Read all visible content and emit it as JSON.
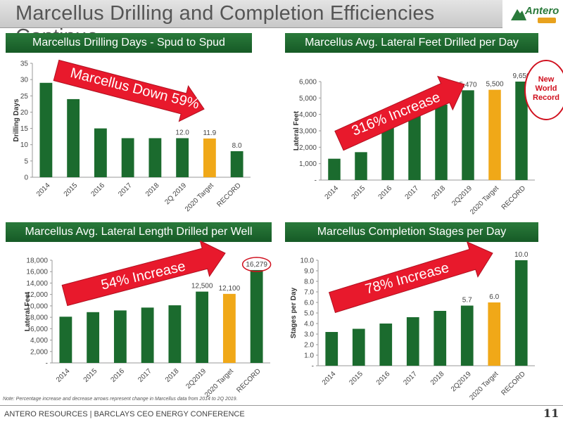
{
  "page": {
    "title": "Marcellus Drilling and Completion Efficiencies Continue",
    "logo_text": "Antero",
    "footer_note": "Note: Percentage increase and decrease arrows represent change in Marcellus data from 2014 to 2Q 2019.",
    "footer_text": "ANTERO RESOURCES | BARCLAYS CEO ENERGY CONFERENCE",
    "page_number": "11"
  },
  "colors": {
    "bar_green": "#1b6b2e",
    "bar_orange": "#f0a818",
    "header_green": "#1f6e32",
    "arrow_red": "#e8192c"
  },
  "chart_data": [
    {
      "type": "bar",
      "title": "Marcellus Drilling Days - Spud to Spud",
      "ylabel": "Drilling Days",
      "categories": [
        "2014",
        "2015",
        "2016",
        "2017",
        "2018",
        "2Q 2019",
        "2020 Target",
        "RECORD"
      ],
      "values": [
        29,
        24,
        15,
        12,
        12,
        12.0,
        11.9,
        8.0
      ],
      "data_labels": [
        "",
        "",
        "",
        "",
        "",
        "12.0",
        "11.9",
        "8.0"
      ],
      "highlight": [
        false,
        false,
        false,
        false,
        false,
        false,
        true,
        false
      ],
      "ylim": [
        0,
        35
      ],
      "yticks": [
        "0",
        "5",
        "10",
        "15",
        "20",
        "25",
        "30",
        "35"
      ],
      "arrow_label": "Marcellus Down 59%"
    },
    {
      "type": "bar",
      "title": "Marcellus Avg. Lateral Feet Drilled per Day",
      "ylabel": "Lateral Feet",
      "categories": [
        "2014",
        "2015",
        "2016",
        "2017",
        "2018",
        "2Q2019",
        "2020 Target",
        "RECORD"
      ],
      "values": [
        1300,
        1700,
        3450,
        4550,
        4600,
        5470,
        5500,
        9650
      ],
      "data_labels": [
        "",
        "",
        "",
        "",
        "",
        "5,470",
        "5,500",
        "9,650"
      ],
      "highlight": [
        false,
        false,
        false,
        false,
        false,
        false,
        true,
        false
      ],
      "ylim": [
        0,
        6000
      ],
      "yticks": [
        "-",
        "1,000",
        "2,000",
        "3,000",
        "4,000",
        "5,000",
        "6,000"
      ],
      "arrow_label": "316% Increase",
      "callout": [
        "New",
        "World",
        "Record"
      ]
    },
    {
      "type": "bar",
      "title": "Marcellus Avg. Lateral Length Drilled per Well",
      "ylabel": "Lateral Feet",
      "categories": [
        "2014",
        "2015",
        "2016",
        "2017",
        "2018",
        "2Q2019",
        "2020 Target",
        "RECORD"
      ],
      "values": [
        8100,
        8900,
        9200,
        9700,
        10100,
        12500,
        12100,
        16279
      ],
      "data_labels": [
        "",
        "",
        "",
        "",
        "",
        "12,500",
        "12,100",
        "16,279"
      ],
      "highlight": [
        false,
        false,
        false,
        false,
        false,
        false,
        true,
        false
      ],
      "ylim": [
        0,
        18000
      ],
      "yticks": [
        "-",
        "2,000",
        "4,000",
        "6,000",
        "8,000",
        "10,000",
        "12,000",
        "14,000",
        "16,000",
        "18,000"
      ],
      "arrow_label": "54% Increase"
    },
    {
      "type": "bar",
      "title": "Marcellus Completion Stages per Day",
      "ylabel": "Stages per Day",
      "categories": [
        "2014",
        "2015",
        "2016",
        "2017",
        "2018",
        "2Q2019",
        "2020 Target",
        "RECORD"
      ],
      "values": [
        3.2,
        3.5,
        4.0,
        4.6,
        5.2,
        5.7,
        6.0,
        10.0
      ],
      "data_labels": [
        "",
        "",
        "",
        "",
        "",
        "5.7",
        "6.0",
        "10.0"
      ],
      "highlight": [
        false,
        false,
        false,
        false,
        false,
        false,
        true,
        false
      ],
      "ylim": [
        0,
        10
      ],
      "yticks": [
        "-",
        "1.0",
        "2.0",
        "3.0",
        "4.0",
        "5.0",
        "6.0",
        "7.0",
        "8.0",
        "9.0",
        "10.0"
      ],
      "arrow_label": "78% Increase"
    }
  ]
}
